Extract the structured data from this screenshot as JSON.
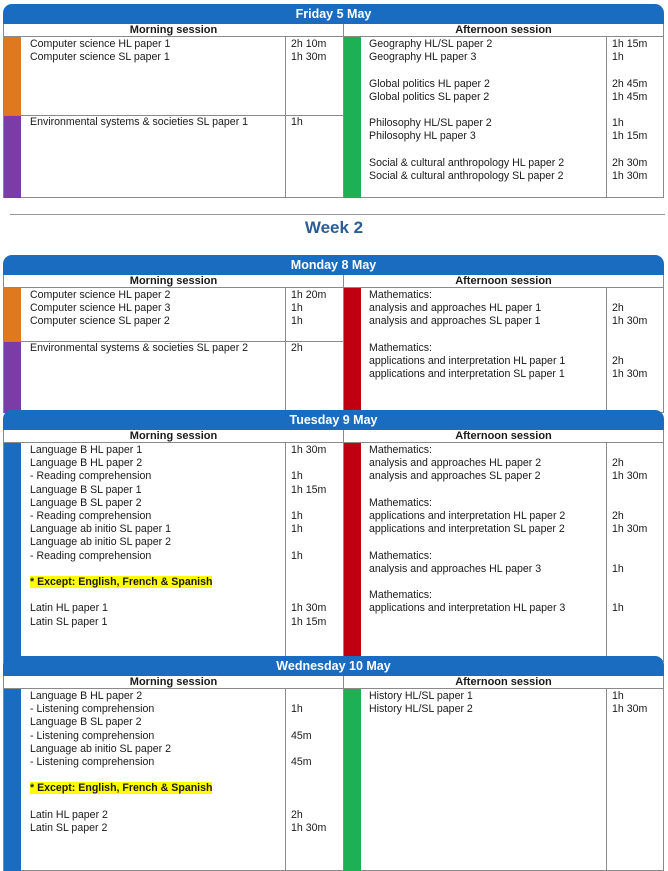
{
  "labels": {
    "morning": "Morning session",
    "afternoon": "Afternoon session"
  },
  "week_title": "Week 2",
  "days": [
    {
      "title": "Friday 5 May",
      "morning": [
        {
          "color": "#e07820",
          "rows": [
            {
              "name": "Computer science HL paper 1",
              "time": "2h 10m"
            },
            {
              "name": "Computer science SL paper 1",
              "time": "1h 30m"
            }
          ]
        },
        {
          "color": "#7b3ca8",
          "rows": [
            {
              "name": "Environmental systems & societies SL paper 1",
              "time": "1h"
            }
          ]
        }
      ],
      "afternoon_color": "#1db054",
      "afternoon": [
        {
          "name": "Geography HL/SL paper 2",
          "time": "1h 15m"
        },
        {
          "name": "Geography HL paper 3",
          "time": "1h"
        },
        {
          "gap": true
        },
        {
          "name": "Global politics HL paper 2",
          "time": "2h 45m"
        },
        {
          "name": "Global politics SL paper 2",
          "time": "1h 45m"
        },
        {
          "gap": true
        },
        {
          "name": "Philosophy HL/SL paper 2",
          "time": "1h"
        },
        {
          "name": "Philosophy HL paper 3",
          "time": "1h 15m"
        },
        {
          "gap": true
        },
        {
          "name": "Social & cultural anthropology HL paper 2",
          "time": "2h 30m"
        },
        {
          "name": "Social & cultural anthropology SL paper 2",
          "time": "1h 30m"
        }
      ]
    },
    {
      "title": "Monday 8 May",
      "morning": [
        {
          "color": "#e07820",
          "rows": [
            {
              "name": "Computer science HL paper 2",
              "time": "1h 20m"
            },
            {
              "name": "Computer science HL paper 3",
              "time": "1h"
            },
            {
              "name": "Computer science SL paper 2",
              "time": "1h"
            }
          ]
        },
        {
          "color": "#7b3ca8",
          "rows": [
            {
              "name": "Environmental systems & societies SL paper 2",
              "time": "2h"
            }
          ]
        }
      ],
      "afternoon_color": "#c00010",
      "afternoon": [
        {
          "name": "Mathematics:",
          "time": ""
        },
        {
          "name": "analysis and approaches HL paper 1",
          "time": "2h"
        },
        {
          "name": "analysis and approaches SL paper 1",
          "time": "1h 30m"
        },
        {
          "gap": true
        },
        {
          "name": "Mathematics:",
          "time": ""
        },
        {
          "name": "applications and interpretation HL paper 1",
          "time": "2h"
        },
        {
          "name": "applications and interpretation SL paper 1",
          "time": "1h 30m"
        }
      ]
    },
    {
      "title": "Tuesday 9 May",
      "morning": [
        {
          "color": "#1a6cc0",
          "rows": [
            {
              "name": "Language B HL paper 1",
              "time": "1h 30m"
            },
            {
              "name": "Language B HL paper 2",
              "time": ""
            },
            {
              "name": "- Reading comprehension",
              "time": "1h"
            },
            {
              "name": "Language B SL paper 1",
              "time": "1h 15m"
            },
            {
              "name": "Language B SL paper 2",
              "time": ""
            },
            {
              "name": "- Reading comprehension",
              "time": "1h"
            },
            {
              "name": "Language ab initio SL paper 1",
              "time": "1h"
            },
            {
              "name": "Language ab initio SL paper 2",
              "time": ""
            },
            {
              "name": "- Reading comprehension",
              "time": "1h"
            },
            {
              "gap": true
            },
            {
              "name": "* Except: English, French & Spanish",
              "time": "",
              "highlight": true
            },
            {
              "gap": true
            },
            {
              "name": "Latin HL paper 1",
              "time": "1h 30m"
            },
            {
              "name": "Latin SL paper 1",
              "time": "1h 15m"
            }
          ]
        }
      ],
      "afternoon_color": "#c00010",
      "afternoon": [
        {
          "name": "Mathematics:",
          "time": ""
        },
        {
          "name": "analysis and approaches HL paper 2",
          "time": "2h"
        },
        {
          "name": "analysis and approaches SL paper 2",
          "time": "1h 30m"
        },
        {
          "gap": true
        },
        {
          "name": "Mathematics:",
          "time": ""
        },
        {
          "name": "applications and interpretation HL paper 2",
          "time": "2h"
        },
        {
          "name": "applications and interpretation SL paper 2",
          "time": "1h 30m"
        },
        {
          "gap": true
        },
        {
          "name": "Mathematics:",
          "time": ""
        },
        {
          "name": "analysis and approaches HL paper 3",
          "time": "1h"
        },
        {
          "gap": true
        },
        {
          "name": "Mathematics:",
          "time": ""
        },
        {
          "name": "applications and interpretation HL paper 3",
          "time": "1h"
        }
      ]
    },
    {
      "title": "Wednesday 10 May",
      "morning": [
        {
          "color": "#1a6cc0",
          "rows": [
            {
              "name": "Language B HL paper 2",
              "time": ""
            },
            {
              "name": "- Listening comprehension",
              "time": "1h"
            },
            {
              "name": "Language B SL paper 2",
              "time": ""
            },
            {
              "name": "- Listening comprehension",
              "time": "45m"
            },
            {
              "name": "Language ab initio SL paper 2",
              "time": ""
            },
            {
              "name": "- Listening comprehension",
              "time": "45m"
            },
            {
              "gap": true
            },
            {
              "name": "* Except: English, French & Spanish",
              "time": "",
              "highlight": true
            },
            {
              "gap": true
            },
            {
              "name": "Latin HL paper 2",
              "time": "2h"
            },
            {
              "name": "Latin SL paper 2",
              "time": "1h 30m"
            }
          ]
        }
      ],
      "afternoon_color": "#1db054",
      "afternoon": [
        {
          "name": "History HL/SL paper 1",
          "time": "1h"
        },
        {
          "name": "History HL/SL paper 2",
          "time": "1h 30m"
        }
      ]
    }
  ]
}
